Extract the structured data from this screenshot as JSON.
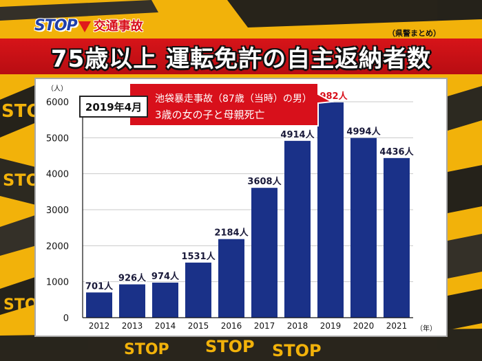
{
  "header": {
    "logo_stop": "STOP",
    "logo_sub": "交通事故",
    "prefecture_note": "（県警まとめ）",
    "title": "75歳以上 運転免許の自主返納者数"
  },
  "annotation": {
    "date": "2019年4月",
    "line1": "池袋暴走事故（87歳（当時）の男）",
    "line2": "3歳の女の子と母親死亡"
  },
  "background_text": [
    "STOP",
    "STOP",
    "STOP",
    "STOP",
    "STOP",
    "STOP"
  ],
  "colors": {
    "bar": "#1a3188",
    "highlight_label": "#d8101b",
    "title_band": "#d71419",
    "background": "#f2b20a"
  },
  "chart_data": {
    "type": "bar",
    "categories": [
      "2012",
      "2013",
      "2014",
      "2015",
      "2016",
      "2017",
      "2018",
      "2019",
      "2020",
      "2021"
    ],
    "values": [
      701,
      926,
      974,
      1531,
      2184,
      3608,
      4914,
      5982,
      4994,
      4436
    ],
    "data_labels": [
      "701人",
      "926人",
      "974人",
      "1531人",
      "2184人",
      "3608人",
      "4914人",
      "5982人",
      "4994人",
      "4436人"
    ],
    "highlight_index": 7,
    "title": "75歳以上 運転免許の自主返納者数",
    "xlabel": "（年）",
    "ylabel": "（人）",
    "ylim": [
      0,
      6000
    ],
    "yticks": [
      0,
      1000,
      2000,
      3000,
      4000,
      5000,
      6000
    ],
    "grid": true
  }
}
